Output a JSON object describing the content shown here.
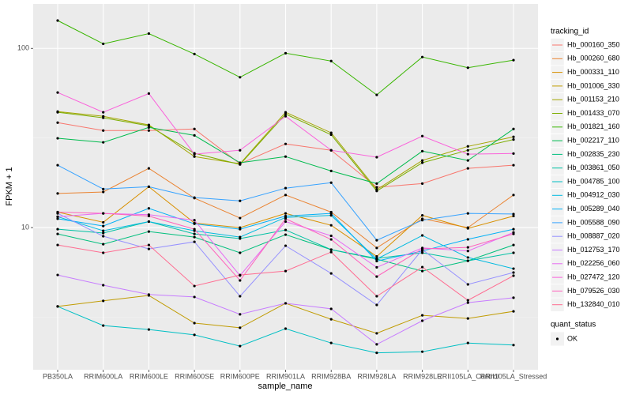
{
  "chart_data": {
    "type": "line",
    "x_label": "sample_name",
    "y_label": "FPKM + 1",
    "legend_title": "tracking_id",
    "point_legend_title": "quant_status",
    "point_legend_label": "OK",
    "point_color": "#000000",
    "log_scale": true,
    "grid": true,
    "legend_position": "right",
    "categories": [
      "PB350LA",
      "RRIM600LA",
      "RRIM600LE",
      "RRIM600SE",
      "RRIM600PE",
      "RRIM901LA",
      "RRIM928BA",
      "RRIM928LA",
      "RRIM928LE",
      "RRII105LA_Control",
      "RRII105LA_Stressed"
    ],
    "ylim": [
      1.61,
      177
    ],
    "yticks": [
      10,
      100
    ],
    "series": [
      {
        "name": "Hb_000160_350",
        "color": "#F8766D",
        "values": [
          38.5,
          34.8,
          34.8,
          35.5,
          22.7,
          29.3,
          27,
          16.8,
          17.6,
          21.4,
          22.3
        ]
      },
      {
        "name": "Hb_000260_680",
        "color": "#EA8331",
        "values": [
          15.5,
          15.8,
          21.4,
          14.6,
          11.3,
          15.2,
          12.2,
          7.7,
          11.2,
          10,
          15.2
        ]
      },
      {
        "name": "Hb_000331_110",
        "color": "#D89000",
        "values": [
          12.2,
          10.7,
          16.9,
          10.6,
          10,
          12,
          10.3,
          6.9,
          11.7,
          9.9,
          11.6
        ]
      },
      {
        "name": "Hb_001006_330",
        "color": "#C09B00",
        "values": [
          3.63,
          3.9,
          4.18,
          2.93,
          2.76,
          3.78,
          3.08,
          2.57,
          3.24,
          3.11,
          3.41
        ]
      },
      {
        "name": "Hb_001153_210",
        "color": "#A3A500",
        "values": [
          44.4,
          41.8,
          37.4,
          24.9,
          22.7,
          44,
          33.8,
          16.3,
          23.7,
          28.4,
          32.1
        ]
      },
      {
        "name": "Hb_001433_070",
        "color": "#7CAE00",
        "values": [
          44,
          41,
          37,
          26,
          22.5,
          43,
          33,
          16,
          23,
          27,
          31
        ]
      },
      {
        "name": "Hb_001821_160",
        "color": "#39B600",
        "values": [
          143,
          106,
          121,
          93,
          69,
          94,
          85,
          55,
          89.5,
          78,
          86
        ]
      },
      {
        "name": "Hb_002217_110",
        "color": "#00BB4E",
        "values": [
          31.5,
          29.9,
          36.2,
          32.7,
          23,
          24.9,
          20.7,
          17.6,
          26.7,
          23.7,
          35.5
        ]
      },
      {
        "name": "Hb_002835_230",
        "color": "#00BF7D",
        "values": [
          9.22,
          8.08,
          9.5,
          8.85,
          7.23,
          9.13,
          7.53,
          6.67,
          5.72,
          6.53,
          8
        ]
      },
      {
        "name": "Hb_003861_050",
        "color": "#00C1A3",
        "values": [
          9.8,
          9.32,
          10.8,
          9.22,
          8.68,
          9.7,
          7.53,
          6.73,
          7.23,
          6.53,
          7.23
        ]
      },
      {
        "name": "Hb_004785_100",
        "color": "#00BFC4",
        "values": [
          3.63,
          2.84,
          2.7,
          2.52,
          2.18,
          2.73,
          2.27,
          2,
          2.03,
          2.27,
          2.21
        ]
      },
      {
        "name": "Hb_004912_030",
        "color": "#00BAE0",
        "values": [
          11.5,
          9.6,
          10.8,
          9.6,
          8.85,
          11.4,
          11.7,
          6.67,
          9.04,
          6.81,
          5.9
        ]
      },
      {
        "name": "Hb_005289_040",
        "color": "#00B0F6",
        "values": [
          11.2,
          10.2,
          12.8,
          10.5,
          9.8,
          11.6,
          12,
          6.5,
          7.4,
          8.6,
          9.8
        ]
      },
      {
        "name": "Hb_005588_090",
        "color": "#35A2FF",
        "values": [
          22.3,
          16.4,
          16.9,
          14.7,
          14.1,
          16.6,
          17.8,
          8.5,
          11,
          12,
          11.9
        ]
      },
      {
        "name": "Hb_008887_020",
        "color": "#9590FF",
        "values": [
          12,
          8.95,
          7.6,
          8.33,
          4.14,
          7.92,
          5.55,
          3.7,
          7.53,
          4.82,
          5.61
        ]
      },
      {
        "name": "Hb_012753_170",
        "color": "#C77CFF",
        "values": [
          5.44,
          4.77,
          4.23,
          4.1,
          3.28,
          3.78,
          3.52,
          2.23,
          3.02,
          3.81,
          4.06
        ]
      },
      {
        "name": "Hb_022256_060",
        "color": "#E76BF3",
        "values": [
          11.5,
          12,
          11.8,
          11,
          5.4,
          10.8,
          9,
          6,
          7.7,
          7.4,
          9.4
        ]
      },
      {
        "name": "Hb_027472_120",
        "color": "#FA62DB",
        "values": [
          56.7,
          44,
          56,
          25.7,
          27,
          41.8,
          27,
          24.7,
          32.4,
          25.7,
          25.9
        ]
      },
      {
        "name": "Hb_079526_030",
        "color": "#FF62BC",
        "values": [
          12.2,
          12,
          11.6,
          9.8,
          5.07,
          11.2,
          8.59,
          5.33,
          7.6,
          7.76,
          9.22
        ]
      },
      {
        "name": "Hb_132840_010",
        "color": "#FF6C91",
        "values": [
          8,
          7.23,
          8,
          4.72,
          5.44,
          5.72,
          7.3,
          4.14,
          6.02,
          3.93,
          5.39
        ]
      }
    ]
  }
}
